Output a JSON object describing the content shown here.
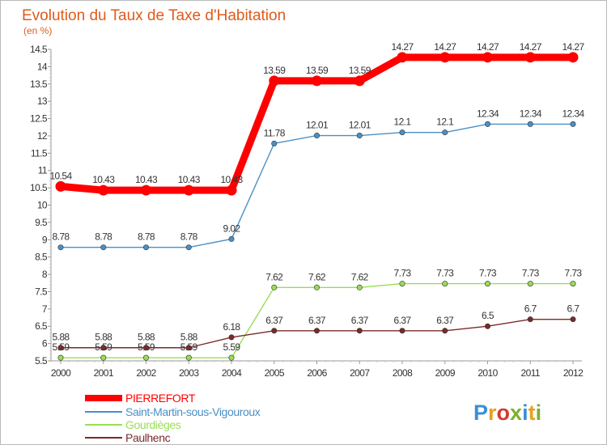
{
  "header": {
    "title": "Evolution du Taux de Taxe d'Habitation",
    "subtitle": "(en %)"
  },
  "brand": {
    "text": "Proxiti",
    "letter_colors": [
      "#3a8fd8",
      "#e8a020",
      "#d23c2c",
      "#7ab030",
      "#3a8fd8",
      "#e8a020",
      "#7ab030"
    ]
  },
  "chart_data": {
    "type": "line",
    "title": "Evolution du Taux de Taxe d'Habitation",
    "subtitle": "(en %)",
    "xlabel": "",
    "ylabel": "",
    "x": [
      "2000",
      "2001",
      "2002",
      "2003",
      "2004",
      "2005",
      "2006",
      "2007",
      "2008",
      "2009",
      "2010",
      "2011",
      "2012"
    ],
    "ylim": [
      5.5,
      14.5
    ],
    "y_ticks": [
      "5.5",
      "6",
      "6.5",
      "7",
      "7.5",
      "8",
      "8.5",
      "9",
      "9.5",
      "10",
      "10.5",
      "11",
      "11.5",
      "12",
      "12.5",
      "13",
      "13.5",
      "14",
      "14.5"
    ],
    "grid": false,
    "legend_position": "bottom-left",
    "series": [
      {
        "name": "PIERREFORT",
        "color": "#ff0000",
        "values": [
          10.54,
          10.43,
          10.43,
          10.43,
          10.43,
          13.59,
          13.59,
          13.59,
          14.27,
          14.27,
          14.27,
          14.27,
          14.27
        ],
        "labels": [
          "10.54",
          "10.43",
          "10.43",
          "10.43",
          "10.43",
          "13.59",
          "13.59",
          "13.59",
          "14.27",
          "14.27",
          "14.27",
          "14.27",
          "14.27"
        ]
      },
      {
        "name": "Saint-Martin-sous-Vigouroux",
        "color": "#4a90c6",
        "values": [
          8.78,
          8.78,
          8.78,
          8.78,
          9.02,
          11.78,
          12.01,
          12.01,
          12.1,
          12.1,
          12.34,
          12.34,
          12.34
        ],
        "labels": [
          "8.78",
          "8.78",
          "8.78",
          "8.78",
          "9.02",
          "11.78",
          "12.01",
          "12.01",
          "12.1",
          "12.1",
          "12.34",
          "12.34",
          "12.34"
        ]
      },
      {
        "name": "Gourdièges",
        "color": "#99dd55",
        "values": [
          5.59,
          5.59,
          5.59,
          5.59,
          5.59,
          7.62,
          7.62,
          7.62,
          7.73,
          7.73,
          7.73,
          7.73,
          7.73
        ],
        "labels": [
          "5.59",
          "5.59",
          "5.59",
          "5.59",
          "5.59",
          "7.62",
          "7.62",
          "7.62",
          "7.73",
          "7.73",
          "7.73",
          "7.73",
          "7.73"
        ]
      },
      {
        "name": "Paulhenc",
        "color": "#7a2a2a",
        "values": [
          5.88,
          5.88,
          5.88,
          5.88,
          6.18,
          6.37,
          6.37,
          6.37,
          6.37,
          6.37,
          6.5,
          6.7,
          6.7
        ],
        "labels": [
          "5.88",
          "5.88",
          "5.88",
          "5.88",
          "6.18",
          "6.37",
          "6.37",
          "6.37",
          "6.37",
          "6.37",
          "6.5",
          "6.7",
          "6.7"
        ]
      }
    ]
  }
}
